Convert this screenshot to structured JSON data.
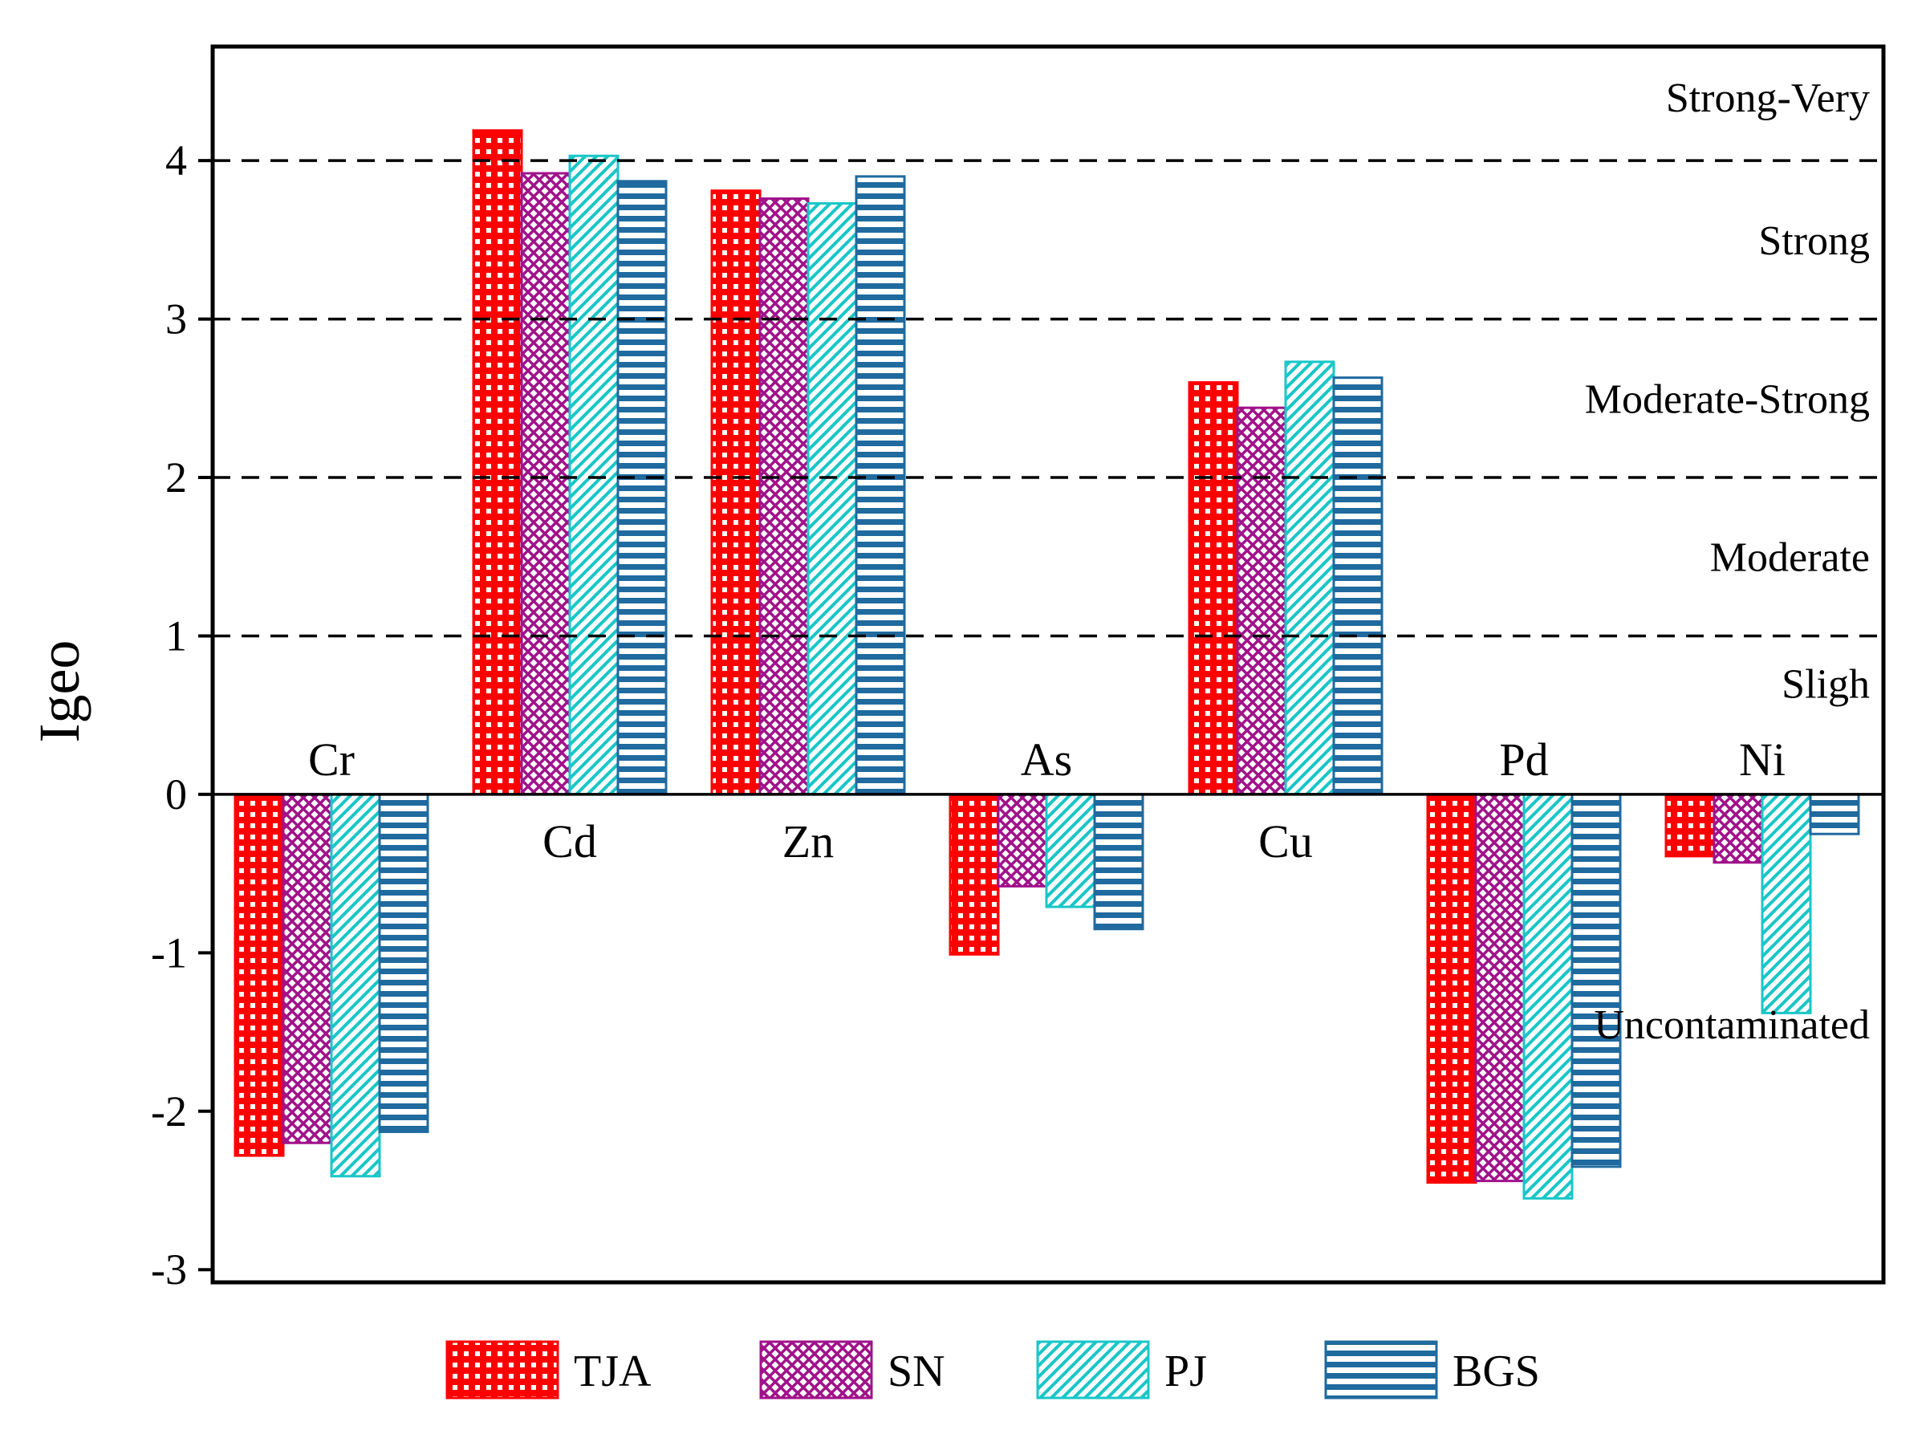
{
  "chart_data": {
    "type": "bar",
    "title": "",
    "xlabel": "",
    "ylabel": "Igeo",
    "ylim": [
      -3,
      4.7
    ],
    "yticks": [
      -3,
      -2,
      -1,
      0,
      1,
      2,
      3,
      4
    ],
    "grid": false,
    "legend_position": "bottom",
    "categories": [
      "Cr",
      "Cd",
      "Zn",
      "As",
      "Cu",
      "Pd",
      "Ni"
    ],
    "series": [
      {
        "name": "TJA",
        "color": "#ff0000",
        "pattern": "grid",
        "values": [
          -2.28,
          4.19,
          3.81,
          -1.01,
          2.6,
          -2.45,
          -0.39
        ]
      },
      {
        "name": "SN",
        "color": "#a0128a",
        "pattern": "crosshatch",
        "values": [
          -2.2,
          3.92,
          3.76,
          -0.58,
          2.44,
          -2.44,
          -0.43
        ]
      },
      {
        "name": "PJ",
        "color": "#19c6c8",
        "pattern": "diagonal",
        "values": [
          -2.41,
          4.03,
          3.73,
          -0.71,
          2.73,
          -2.55,
          -1.38
        ]
      },
      {
        "name": "BGS",
        "color": "#1f6a9e",
        "pattern": "horizontal",
        "values": [
          -2.13,
          3.87,
          3.9,
          -0.85,
          2.63,
          -2.35,
          -0.25
        ]
      }
    ],
    "thresholds": [
      4,
      3,
      2,
      1
    ],
    "zones": [
      {
        "label": "Strong-Very",
        "y": 4.4
      },
      {
        "label": "Strong",
        "y": 3.5
      },
      {
        "label": "Moderate-Strong",
        "y": 2.5
      },
      {
        "label": "Moderate",
        "y": 1.5
      },
      {
        "label": "Sligh",
        "y": 0.7
      },
      {
        "label": "Uncontaminated",
        "y": -1.45
      }
    ]
  }
}
